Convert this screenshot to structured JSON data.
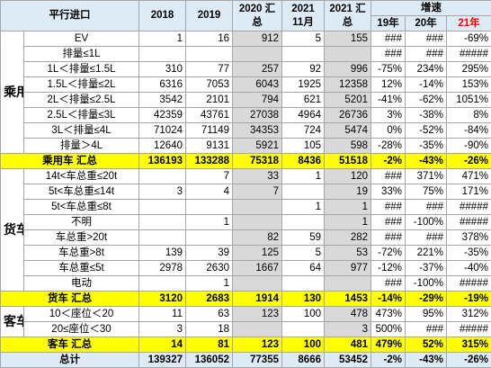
{
  "header": {
    "title": "平行进口",
    "col2018": "2018",
    "col2019": "2019",
    "col2020": "2020 汇总",
    "col2021_11": "2021 11月",
    "col2021": "2021 汇总",
    "growth": "增速",
    "g19": "19年",
    "g20": "20年",
    "g21": "21年"
  },
  "colors": {
    "header_bg": "#ddebf7",
    "summary_bg": "#ffff00",
    "highlight_gray": "#d9d9d9",
    "red": "#ff0000"
  },
  "groups": {
    "passenger": {
      "label": "乘用车",
      "rows": [
        {
          "name": "EV",
          "v2018": "1",
          "v2019": "16",
          "v2020": "912",
          "v2111": "5",
          "v2021": "155",
          "g19": "###",
          "g20": "###",
          "g21": "-69%"
        },
        {
          "name": "排量≤1L",
          "v2018": "",
          "v2019": "",
          "v2020": "",
          "v2111": "",
          "v2021": "",
          "g19": "###",
          "g20": "###",
          "g21": "#####"
        },
        {
          "name": "1L＜排量≤1.5L",
          "v2018": "310",
          "v2019": "77",
          "v2020": "257",
          "v2111": "92",
          "v2021": "996",
          "g19": "-75%",
          "g20": "234%",
          "g21": "295%"
        },
        {
          "name": "1.5L＜排量≤2L",
          "v2018": "6316",
          "v2019": "7053",
          "v2020": "6043",
          "v2111": "1925",
          "v2021": "12358",
          "g19": "12%",
          "g20": "-14%",
          "g21": "153%"
        },
        {
          "name": "2L＜排量≤2.5L",
          "v2018": "3542",
          "v2019": "2101",
          "v2020": "794",
          "v2111": "621",
          "v2021": "5201",
          "g19": "-41%",
          "g20": "-62%",
          "g21": "1051%"
        },
        {
          "name": "2.5L＜排量≤3L",
          "v2018": "42359",
          "v2019": "43761",
          "v2020": "27038",
          "v2111": "4964",
          "v2021": "26736",
          "g19": "3%",
          "g20": "-38%",
          "g21": "8%"
        },
        {
          "name": "3L＜排量≤4L",
          "v2018": "71024",
          "v2019": "71149",
          "v2020": "34353",
          "v2111": "724",
          "v2021": "5474",
          "g19": "0%",
          "g20": "-52%",
          "g21": "-84%"
        },
        {
          "name": "排量＞4L",
          "v2018": "12640",
          "v2019": "9131",
          "v2020": "5921",
          "v2111": "105",
          "v2021": "598",
          "g19": "-28%",
          "g20": "-35%",
          "g21": "-90%"
        }
      ],
      "summary": {
        "name": "乘用车 汇总",
        "v2018": "136193",
        "v2019": "133288",
        "v2020": "75318",
        "v2111": "8436",
        "v2021": "51518",
        "g19": "-2%",
        "g20": "-43%",
        "g21": "-26%"
      }
    },
    "truck": {
      "label": "货车",
      "rows": [
        {
          "name": "14t<车总重≤20t",
          "v2018": "",
          "v2019": "7",
          "v2020": "33",
          "v2111": "1",
          "v2021": "120",
          "g19": "###",
          "g20": "371%",
          "g21": "471%"
        },
        {
          "name": "5t<车总重≤14t",
          "v2018": "3",
          "v2019": "4",
          "v2020": "7",
          "v2111": "",
          "v2021": "19",
          "g19": "33%",
          "g20": "75%",
          "g21": "171%"
        },
        {
          "name": "5t<车总重≤8t",
          "v2018": "",
          "v2019": "",
          "v2020": "",
          "v2111": "1",
          "v2021": "1",
          "g19": "###",
          "g20": "###",
          "g21": "#####"
        },
        {
          "name": "不明",
          "v2018": "",
          "v2019": "1",
          "v2020": "",
          "v2111": "",
          "v2021": "1",
          "g19": "###",
          "g20": "-100%",
          "g21": "#####"
        },
        {
          "name": "车总重>20t",
          "v2018": "",
          "v2019": "",
          "v2020": "82",
          "v2111": "59",
          "v2021": "282",
          "g19": "###",
          "g20": "###",
          "g21": "378%"
        },
        {
          "name": "车总重>8t",
          "v2018": "139",
          "v2019": "39",
          "v2020": "125",
          "v2111": "5",
          "v2021": "53",
          "g19": "-72%",
          "g20": "221%",
          "g21": "-35%"
        },
        {
          "name": "车总重≤5t",
          "v2018": "2978",
          "v2019": "2630",
          "v2020": "1667",
          "v2111": "64",
          "v2021": "977",
          "g19": "-12%",
          "g20": "-37%",
          "g21": "-40%"
        },
        {
          "name": "电动",
          "v2018": "",
          "v2019": "1",
          "v2020": "",
          "v2111": "",
          "v2021": "",
          "g19": "###",
          "g20": "-100%",
          "g21": "#####"
        }
      ],
      "summary": {
        "name": "货车 汇总",
        "v2018": "3120",
        "v2019": "2683",
        "v2020": "1914",
        "v2111": "130",
        "v2021": "1453",
        "g19": "-14%",
        "g20": "-29%",
        "g21": "-19%"
      }
    },
    "bus": {
      "label": "客车",
      "rows": [
        {
          "name": "10＜座位＜20",
          "v2018": "11",
          "v2019": "63",
          "v2020": "123",
          "v2111": "100",
          "v2021": "478",
          "g19": "473%",
          "g20": "95%",
          "g21": "312%"
        },
        {
          "name": "20≤座位＜30",
          "v2018": "3",
          "v2019": "18",
          "v2020": "",
          "v2111": "",
          "v2021": "3",
          "g19": "500%",
          "g20": "###",
          "g21": "#####"
        }
      ],
      "summary": {
        "name": "客车 汇总",
        "v2018": "14",
        "v2019": "81",
        "v2020": "123",
        "v2111": "100",
        "v2021": "481",
        "g19": "479%",
        "g20": "52%",
        "g21": "315%"
      }
    }
  },
  "total": {
    "name": "总计",
    "v2018": "139327",
    "v2019": "136052",
    "v2020": "77355",
    "v2111": "8666",
    "v2021": "53452",
    "g19": "-2%",
    "g20": "-43%",
    "g21": "-26%"
  }
}
